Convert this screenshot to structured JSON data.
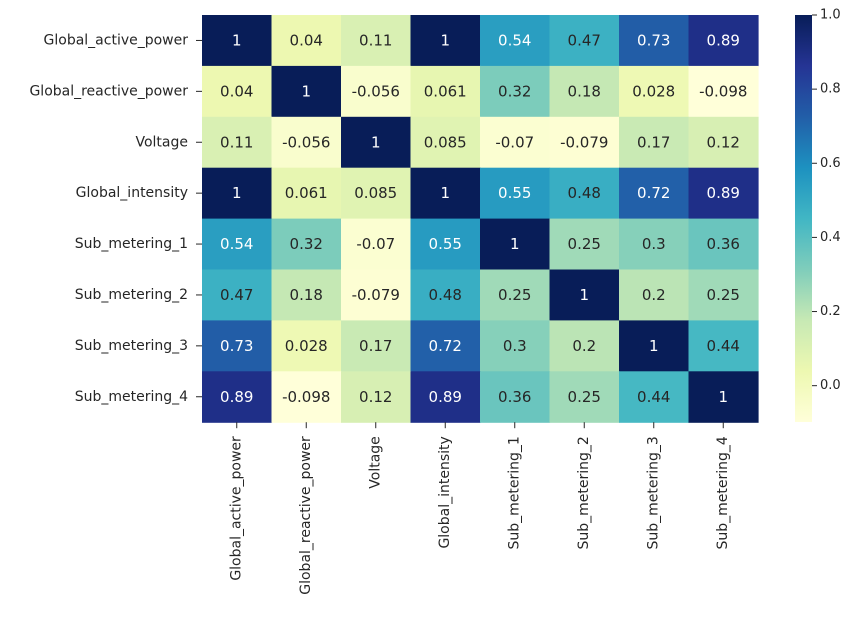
{
  "chart_data": {
    "type": "heatmap",
    "title": "",
    "labels": [
      "Global_active_power",
      "Global_reactive_power",
      "Voltage",
      "Global_intensity",
      "Sub_metering_1",
      "Sub_metering_2",
      "Sub_metering_3",
      "Sub_metering_4"
    ],
    "values": [
      [
        1,
        0.04,
        0.11,
        1,
        0.54,
        0.47,
        0.73,
        0.89
      ],
      [
        0.04,
        1,
        -0.056,
        0.061,
        0.32,
        0.18,
        0.028,
        -0.098
      ],
      [
        0.11,
        -0.056,
        1,
        0.085,
        -0.07,
        -0.079,
        0.17,
        0.12
      ],
      [
        1,
        0.061,
        0.085,
        1,
        0.55,
        0.48,
        0.72,
        0.89
      ],
      [
        0.54,
        0.32,
        -0.07,
        0.55,
        1,
        0.25,
        0.3,
        0.36
      ],
      [
        0.47,
        0.18,
        -0.079,
        0.48,
        0.25,
        1,
        0.2,
        0.25
      ],
      [
        0.73,
        0.028,
        0.17,
        0.72,
        0.3,
        0.2,
        1,
        0.44
      ],
      [
        0.89,
        -0.098,
        0.12,
        0.89,
        0.36,
        0.25,
        0.44,
        1
      ]
    ],
    "value_labels": [
      [
        "1",
        "0.04",
        "0.11",
        "1",
        "0.54",
        "0.47",
        "0.73",
        "0.89"
      ],
      [
        "0.04",
        "1",
        "-0.056",
        "0.061",
        "0.32",
        "0.18",
        "0.028",
        "-0.098"
      ],
      [
        "0.11",
        "-0.056",
        "1",
        "0.085",
        "-0.07",
        "-0.079",
        "0.17",
        "0.12"
      ],
      [
        "1",
        "0.061",
        "0.085",
        "1",
        "0.55",
        "0.48",
        "0.72",
        "0.89"
      ],
      [
        "0.54",
        "0.32",
        "-0.07",
        "0.55",
        "1",
        "0.25",
        "0.3",
        "0.36"
      ],
      [
        "0.47",
        "0.18",
        "-0.079",
        "0.48",
        "0.25",
        "1",
        "0.2",
        "0.25"
      ],
      [
        "0.73",
        "0.028",
        "0.17",
        "0.72",
        "0.3",
        "0.2",
        "1",
        "0.44"
      ],
      [
        "0.89",
        "-0.098",
        "0.12",
        "0.89",
        "0.36",
        "0.25",
        "0.44",
        "1"
      ]
    ],
    "colormap": "YlGnBu",
    "colormap_stops": [
      "#ffffd9",
      "#edf8b1",
      "#c7e9b4",
      "#7fcdbb",
      "#41b6c4",
      "#1d91c0",
      "#225ea8",
      "#253494",
      "#081d58"
    ],
    "vmin": -0.098,
    "vmax": 1,
    "colorbar_ticks": [
      0.0,
      0.2,
      0.4,
      0.6,
      0.8,
      1.0
    ],
    "colorbar_tick_labels": [
      "0.0",
      "0.2",
      "0.4",
      "0.6",
      "0.8",
      "1.0"
    ],
    "annotation_colors": {
      "dark_text": "#262626",
      "light_text": "#ffffff"
    }
  }
}
